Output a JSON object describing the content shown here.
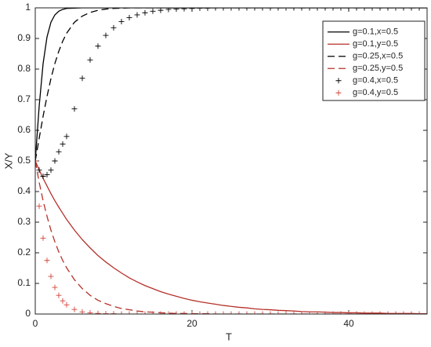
{
  "chart_data": {
    "type": "line",
    "x_label": "T",
    "y_label": "X/Y",
    "xlim": [
      0,
      50
    ],
    "xticks": [
      0,
      20,
      40
    ],
    "ylim": [
      0,
      1
    ],
    "yticks": [
      0,
      0.1,
      0.2,
      0.3,
      0.4,
      0.5,
      0.6,
      0.7,
      0.8,
      0.9,
      1
    ],
    "legend": "upper right",
    "x": [
      0,
      0.5,
      1,
      1.5,
      2,
      2.5,
      3,
      3.5,
      4,
      5,
      6,
      7,
      8,
      9,
      10,
      11,
      12,
      13,
      14,
      15,
      16,
      17,
      18,
      19,
      20,
      21,
      22,
      23,
      24,
      25,
      26,
      27,
      28,
      29,
      30,
      31,
      32,
      33,
      34,
      35,
      36,
      37,
      38,
      39,
      40,
      41,
      42,
      43,
      44,
      45,
      46,
      47,
      48,
      49,
      50
    ],
    "series": [
      {
        "name": "g=0.1,x=0.5",
        "color": "#000000",
        "line_style": "solid",
        "values": [
          0.5,
          0.679,
          0.818,
          0.905,
          0.953,
          0.977,
          0.989,
          0.995,
          0.998,
          0.999,
          1,
          1,
          1,
          1,
          1,
          1,
          1,
          1,
          1,
          1,
          1,
          1,
          1,
          1,
          1,
          1,
          1,
          1,
          1,
          1,
          1,
          1,
          1,
          1,
          1,
          1,
          1,
          1,
          1,
          1,
          1,
          1,
          1,
          1,
          1,
          1,
          1,
          1,
          1,
          1,
          1,
          1,
          1,
          1,
          1
        ]
      },
      {
        "name": "g=0.1,y=0.5",
        "color": "#b5312a",
        "line_style": "solid",
        "values": [
          0.5,
          0.471,
          0.443,
          0.418,
          0.393,
          0.37,
          0.349,
          0.329,
          0.309,
          0.274,
          0.243,
          0.216,
          0.191,
          0.17,
          0.151,
          0.134,
          0.118,
          0.105,
          0.093,
          0.083,
          0.073,
          0.065,
          0.058,
          0.051,
          0.045,
          0.04,
          0.036,
          0.032,
          0.028,
          0.025,
          0.022,
          0.02,
          0.017,
          0.015,
          0.014,
          0.012,
          0.011,
          0.01,
          0.008,
          0.007,
          0.007,
          0.006,
          0.005,
          0.005,
          0.004,
          0.004,
          0.003,
          0.003,
          0.003,
          0.002,
          0.002,
          0.002,
          0.002,
          0.001,
          0.001
        ]
      },
      {
        "name": "g=0.25,x=0.5",
        "color": "#000000",
        "line_style": "dashed",
        "values": [
          0.5,
          0.574,
          0.646,
          0.711,
          0.769,
          0.818,
          0.858,
          0.891,
          0.917,
          0.953,
          0.973,
          0.985,
          0.992,
          0.996,
          0.998,
          0.999,
          1,
          1,
          1,
          1,
          1,
          1,
          1,
          1,
          1,
          1,
          1,
          1,
          1,
          1,
          1,
          1,
          1,
          1,
          1,
          1,
          1,
          1,
          1,
          1,
          1,
          1,
          1,
          1,
          1,
          1,
          1,
          1,
          1,
          1,
          1,
          1,
          1,
          1,
          1
        ]
      },
      {
        "name": "g=0.25,y=0.5",
        "color": "#b5312a",
        "line_style": "dashed",
        "values": [
          0.5,
          0.43,
          0.37,
          0.319,
          0.274,
          0.236,
          0.203,
          0.175,
          0.151,
          0.112,
          0.083,
          0.061,
          0.045,
          0.034,
          0.025,
          0.018,
          0.014,
          0.01,
          0.007,
          0.006,
          0.004,
          0.003,
          0.002,
          0.002,
          0.001,
          0.001,
          0.001,
          0,
          0,
          0,
          0,
          0,
          0,
          0,
          0,
          0,
          0,
          0,
          0,
          0,
          0,
          0,
          0,
          0,
          0,
          0,
          0,
          0,
          0,
          0,
          0,
          0,
          0,
          0,
          0
        ]
      },
      {
        "name": "g=0.4,x=0.5",
        "color": "#000000",
        "line_style": "none",
        "marker": "+",
        "values": [
          0.5,
          0.47,
          0.45,
          0.455,
          0.47,
          0.5,
          0.53,
          0.555,
          0.58,
          0.67,
          0.77,
          0.83,
          0.875,
          0.91,
          0.935,
          0.955,
          0.968,
          0.977,
          0.984,
          0.989,
          0.992,
          0.995,
          0.996,
          0.997,
          0.998,
          0.999,
          0.999,
          1,
          1,
          1,
          1,
          1,
          1,
          1,
          1,
          1,
          1,
          1,
          1,
          1,
          1,
          1,
          1,
          1,
          1,
          1,
          1,
          1,
          1,
          1,
          1,
          1,
          1,
          1,
          1
        ]
      },
      {
        "name": "g=0.4,y=0.5",
        "color": "#d0453a",
        "line_style": "none",
        "marker": "+",
        "values": [
          0.5,
          0.352,
          0.248,
          0.175,
          0.123,
          0.087,
          0.061,
          0.043,
          0.03,
          0.015,
          0.007,
          0.004,
          0.002,
          0.001,
          0.001,
          0,
          0,
          0,
          0,
          0,
          0,
          0,
          0,
          0,
          0,
          0,
          0,
          0,
          0,
          0,
          0,
          0,
          0,
          0,
          0,
          0,
          0,
          0,
          0,
          0,
          0,
          0,
          0,
          0,
          0,
          0,
          0,
          0,
          0,
          0,
          0,
          0,
          0,
          0,
          0
        ]
      }
    ]
  }
}
